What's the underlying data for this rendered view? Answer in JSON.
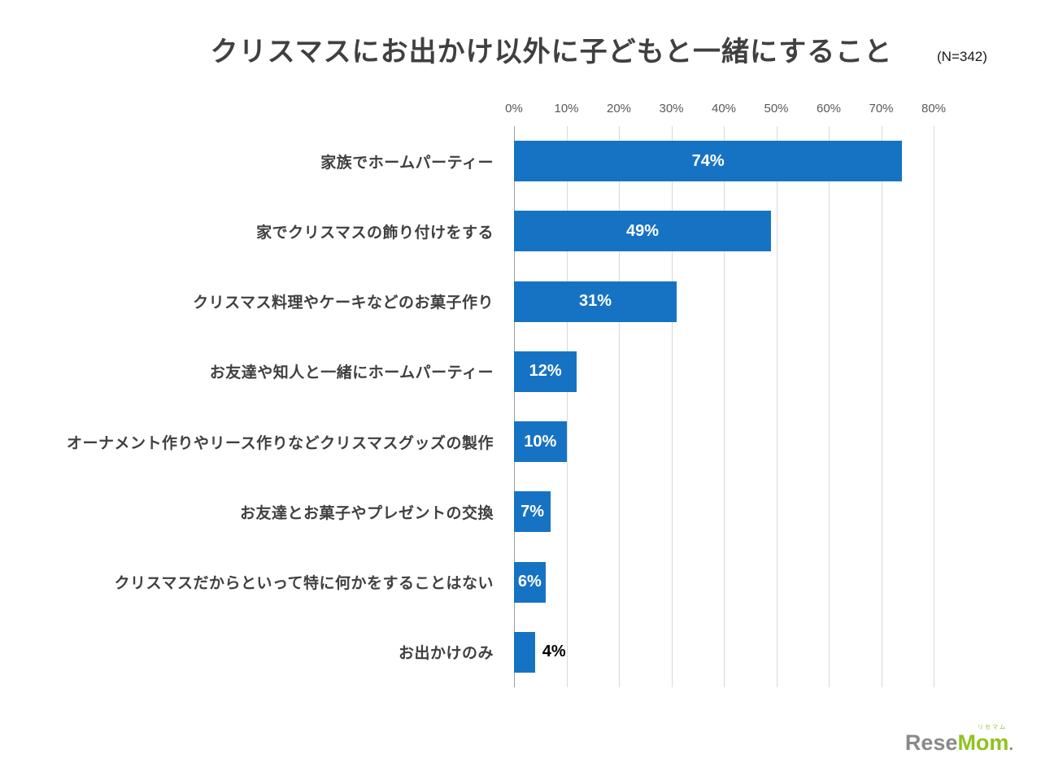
{
  "header": {
    "title": "クリスマスにお出かけ以外に子どもと一緒にすること",
    "sample_size": "(N=342)"
  },
  "chart_data": {
    "type": "bar",
    "orientation": "horizontal",
    "title": "クリスマスにお出かけ以外に子どもと一緒にすること",
    "subtitle": "(N=342)",
    "categories": [
      "家族でホームパーティー",
      "家でクリスマスの飾り付けをする",
      "クリスマス料理やケーキなどのお菓子作り",
      "お友達や知人と一緒にホームパーティー",
      "オーナメント作りやリース作りなどクリスマスグッズの製作",
      "お友達とお菓子やプレゼントの交換",
      "クリスマスだからといって特に何かをすることはない",
      "お出かけのみ"
    ],
    "values": [
      74,
      49,
      31,
      12,
      10,
      7,
      6,
      4
    ],
    "value_labels": [
      "74%",
      "49%",
      "31%",
      "12%",
      "10%",
      "7%",
      "6%",
      "4%"
    ],
    "label_inside": [
      true,
      true,
      true,
      true,
      true,
      true,
      true,
      false
    ],
    "x_ticks": [
      "0%",
      "10%",
      "20%",
      "30%",
      "40%",
      "50%",
      "60%",
      "70%",
      "80%"
    ],
    "xlim": [
      0,
      80
    ],
    "xlabel": "",
    "ylabel": "",
    "grid": true,
    "legend": "none",
    "bar_color": "#1673c4",
    "value_label_inside_color": "#ffffff",
    "value_label_outside_color": "#000000",
    "gridline_color": "#d9d9d9",
    "axis_line_color": "#9e9e9e",
    "tick_label_color": "#595959",
    "category_label_color": "#404040",
    "title_color": "#404040"
  },
  "footer": {
    "logo": {
      "gray_text": "Rese",
      "green_text": "Mom",
      "dot_text": ".",
      "ruby_text": "リセマム",
      "gray_color": "#898989",
      "green_color": "#8fc31f"
    }
  }
}
